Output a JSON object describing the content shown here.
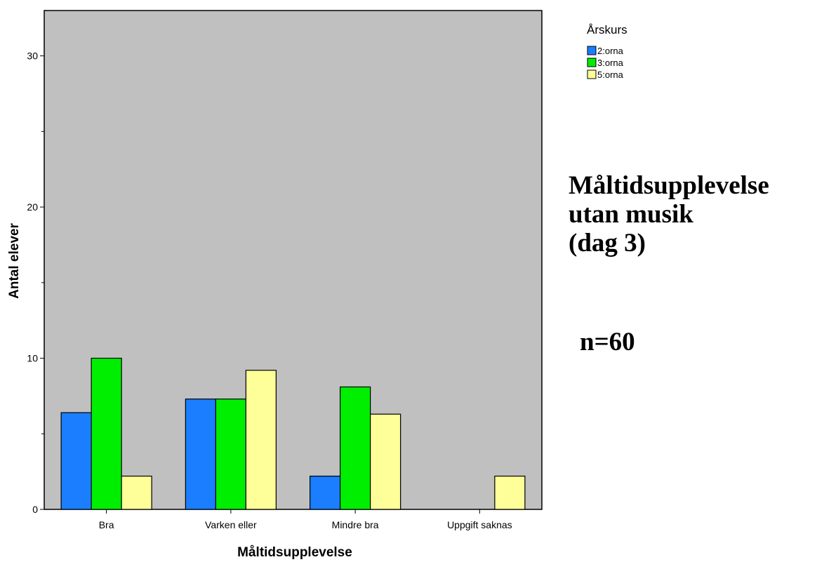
{
  "chart_data": {
    "type": "bar",
    "categories": [
      "Bra",
      "Varken eller",
      "Mindre bra",
      "Uppgift saknas"
    ],
    "series": [
      {
        "name": "2:orna",
        "values": [
          6.4,
          7.3,
          2.2,
          0
        ]
      },
      {
        "name": "3:orna",
        "values": [
          10,
          7.3,
          8.1,
          0
        ]
      },
      {
        "name": "5:orna",
        "values": [
          2.2,
          9.2,
          6.3,
          2.2
        ]
      }
    ],
    "colors": [
      "#1a7eff",
      "#00ee00",
      "#ffff99"
    ],
    "plot_background": "#c0c0c0",
    "xlabel": "Måltidsupplevelse",
    "ylabel": "Antal elever",
    "ylim": [
      0,
      33
    ],
    "yticks": [
      0,
      10,
      20,
      30
    ],
    "legend": {
      "title": "Årskurs",
      "position": "top-right"
    },
    "grid": false
  },
  "annotation": {
    "title_lines": [
      "Måltidsupplevelse",
      "utan musik",
      "(dag 3)"
    ],
    "n_label": "n=60"
  }
}
